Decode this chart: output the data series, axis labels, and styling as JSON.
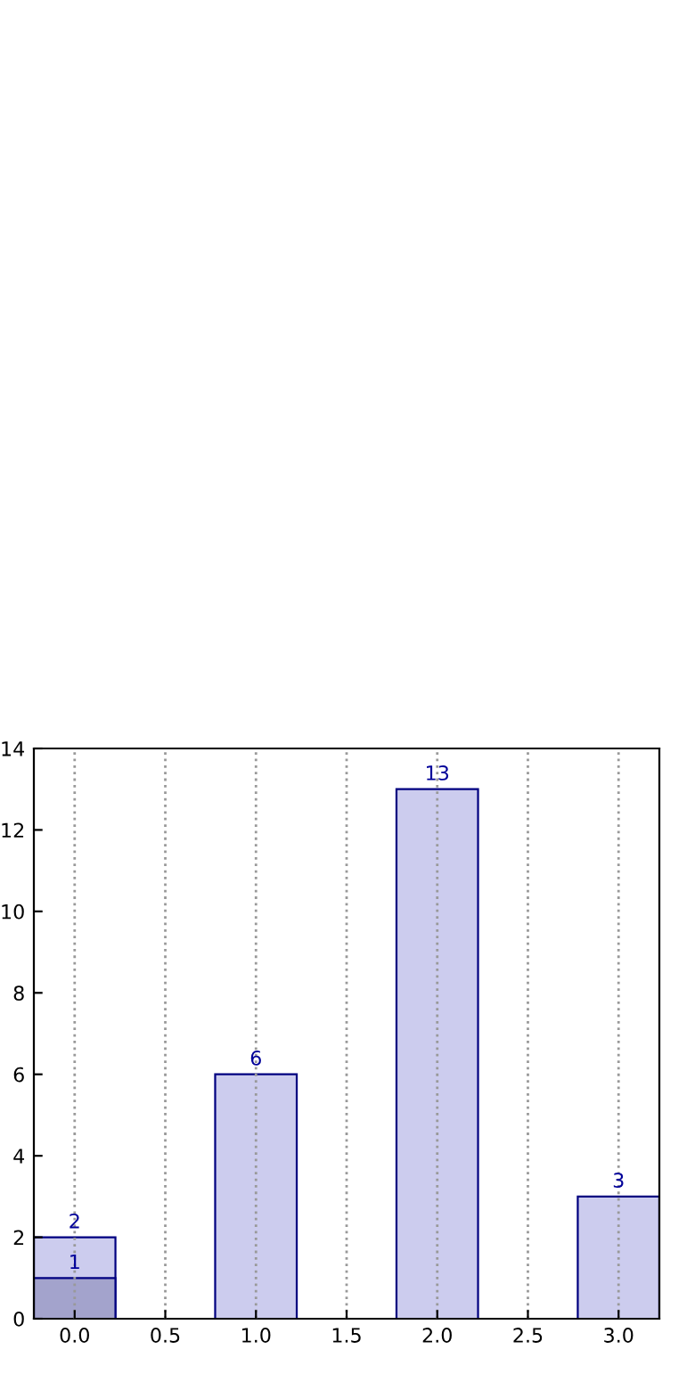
{
  "chart_data": {
    "type": "bar",
    "x": [
      0,
      1,
      2,
      3
    ],
    "series": [
      {
        "color": "#ccccee",
        "values": [
          2,
          6,
          13,
          3
        ]
      },
      {
        "color": "#a3a3cc",
        "values": [
          1,
          null,
          null,
          null
        ]
      }
    ],
    "xlim": [
      -0.225,
      3.225
    ],
    "xticks": [
      {
        "value": 0,
        "label": "0.0"
      },
      {
        "value": 0.5,
        "label": "0.5"
      },
      {
        "value": 1,
        "label": "1.0"
      },
      {
        "value": 1.5,
        "label": "1.5"
      },
      {
        "value": 2,
        "label": "2.0"
      },
      {
        "value": 2.5,
        "label": "2.5"
      },
      {
        "value": 3,
        "label": "3.0"
      }
    ],
    "ylim": [
      0,
      14
    ],
    "yticks": [
      0,
      2,
      4,
      6,
      8,
      10,
      12,
      14
    ],
    "grid": "x",
    "data_labels": true
  }
}
